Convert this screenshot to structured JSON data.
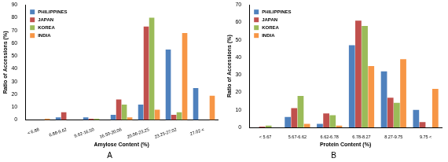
{
  "chart_data": [
    {
      "type": "bar",
      "title": "A",
      "x_label": "Amylose Content (%)",
      "y_label": "Ratio of Accessions (%)",
      "categories": [
        "< 6.88",
        "6.88-9.62",
        "9.62-16.50",
        "16.50-20.06",
        "20.06-23.25",
        "23.25-27.02",
        "27.02 <"
      ],
      "series": [
        {
          "name": "PHILIPPINES",
          "color": "#4f81bd",
          "values": [
            0,
            2,
            2,
            4,
            12,
            55,
            25
          ]
        },
        {
          "name": "JAPAN",
          "color": "#c0504d",
          "values": [
            0,
            6,
            1,
            16,
            73,
            4,
            0
          ]
        },
        {
          "name": "KOREA",
          "color": "#9bbb59",
          "values": [
            0,
            0,
            1,
            12,
            80,
            6,
            0
          ]
        },
        {
          "name": "INDIA",
          "color": "#f79646",
          "values": [
            1,
            0,
            0,
            2,
            8,
            68,
            19
          ]
        }
      ],
      "ylim": [
        0,
        90
      ],
      "yticks": [
        0,
        10,
        20,
        30,
        40,
        50,
        60,
        70,
        80,
        90
      ],
      "grid": false,
      "legend": "upper left"
    },
    {
      "type": "bar",
      "title": "B",
      "x_label": "Protein Content (%)",
      "y_label": "Ratio of Accessions (%)",
      "categories": [
        "< 5.67",
        "5.67-6.62",
        "6.62-6.78",
        "6.78-8.27",
        "8.27-9.75",
        "9.75 <"
      ],
      "series": [
        {
          "name": "PHILIPPINES",
          "color": "#4f81bd",
          "values": [
            0,
            6,
            2,
            47,
            32,
            10
          ]
        },
        {
          "name": "JAPAN",
          "color": "#c0504d",
          "values": [
            0.5,
            11,
            8,
            61,
            17,
            3
          ]
        },
        {
          "name": "KOREA",
          "color": "#9bbb59",
          "values": [
            1,
            18,
            7,
            58,
            14,
            0
          ]
        },
        {
          "name": "INDIA",
          "color": "#f79646",
          "values": [
            0,
            2,
            1,
            35,
            39,
            22
          ]
        }
      ],
      "ylim": [
        0,
        70
      ],
      "yticks": [
        0,
        10,
        20,
        30,
        40,
        50,
        60,
        70
      ],
      "grid": false,
      "legend": "upper left"
    }
  ]
}
